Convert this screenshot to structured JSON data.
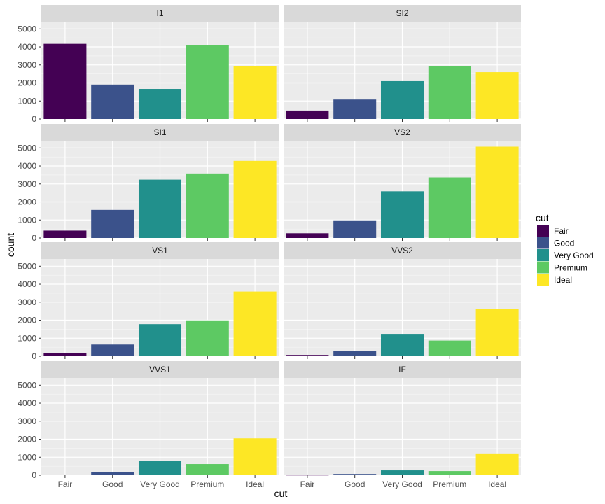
{
  "chart_data": {
    "type": "bar",
    "xlabel": "cut",
    "ylabel": "count",
    "ylim": [
      0,
      5400
    ],
    "y_ticks": [
      0,
      1000,
      2000,
      3000,
      4000,
      5000
    ],
    "categories": [
      "Fair",
      "Good",
      "Very Good",
      "Premium",
      "Ideal"
    ],
    "colors": [
      "#440154",
      "#3b528b",
      "#21908c",
      "#5dc963",
      "#fde725"
    ],
    "legend": {
      "title": "cut",
      "position": "right",
      "entries": [
        "Fair",
        "Good",
        "Very Good",
        "Premium",
        "Ideal"
      ]
    },
    "grid": true,
    "background": "#ebebeb",
    "strip_background": "#d9d9d9",
    "panels": [
      {
        "title": "I1",
        "values": [
          4170,
          1910,
          1670,
          4090,
          2940
        ]
      },
      {
        "title": "SI2",
        "values": [
          470,
          1080,
          2100,
          2950,
          2600
        ]
      },
      {
        "title": "SI1",
        "values": [
          410,
          1560,
          3240,
          3580,
          4280
        ]
      },
      {
        "title": "VS2",
        "values": [
          260,
          980,
          2590,
          3360,
          5070
        ]
      },
      {
        "title": "VS1",
        "values": [
          170,
          650,
          1780,
          1990,
          3590
        ]
      },
      {
        "title": "VVS2",
        "values": [
          70,
          290,
          1240,
          870,
          2610
        ]
      },
      {
        "title": "VVS1",
        "values": [
          20,
          190,
          790,
          620,
          2050
        ]
      },
      {
        "title": "IF",
        "values": [
          10,
          70,
          270,
          230,
          1210
        ]
      }
    ]
  }
}
